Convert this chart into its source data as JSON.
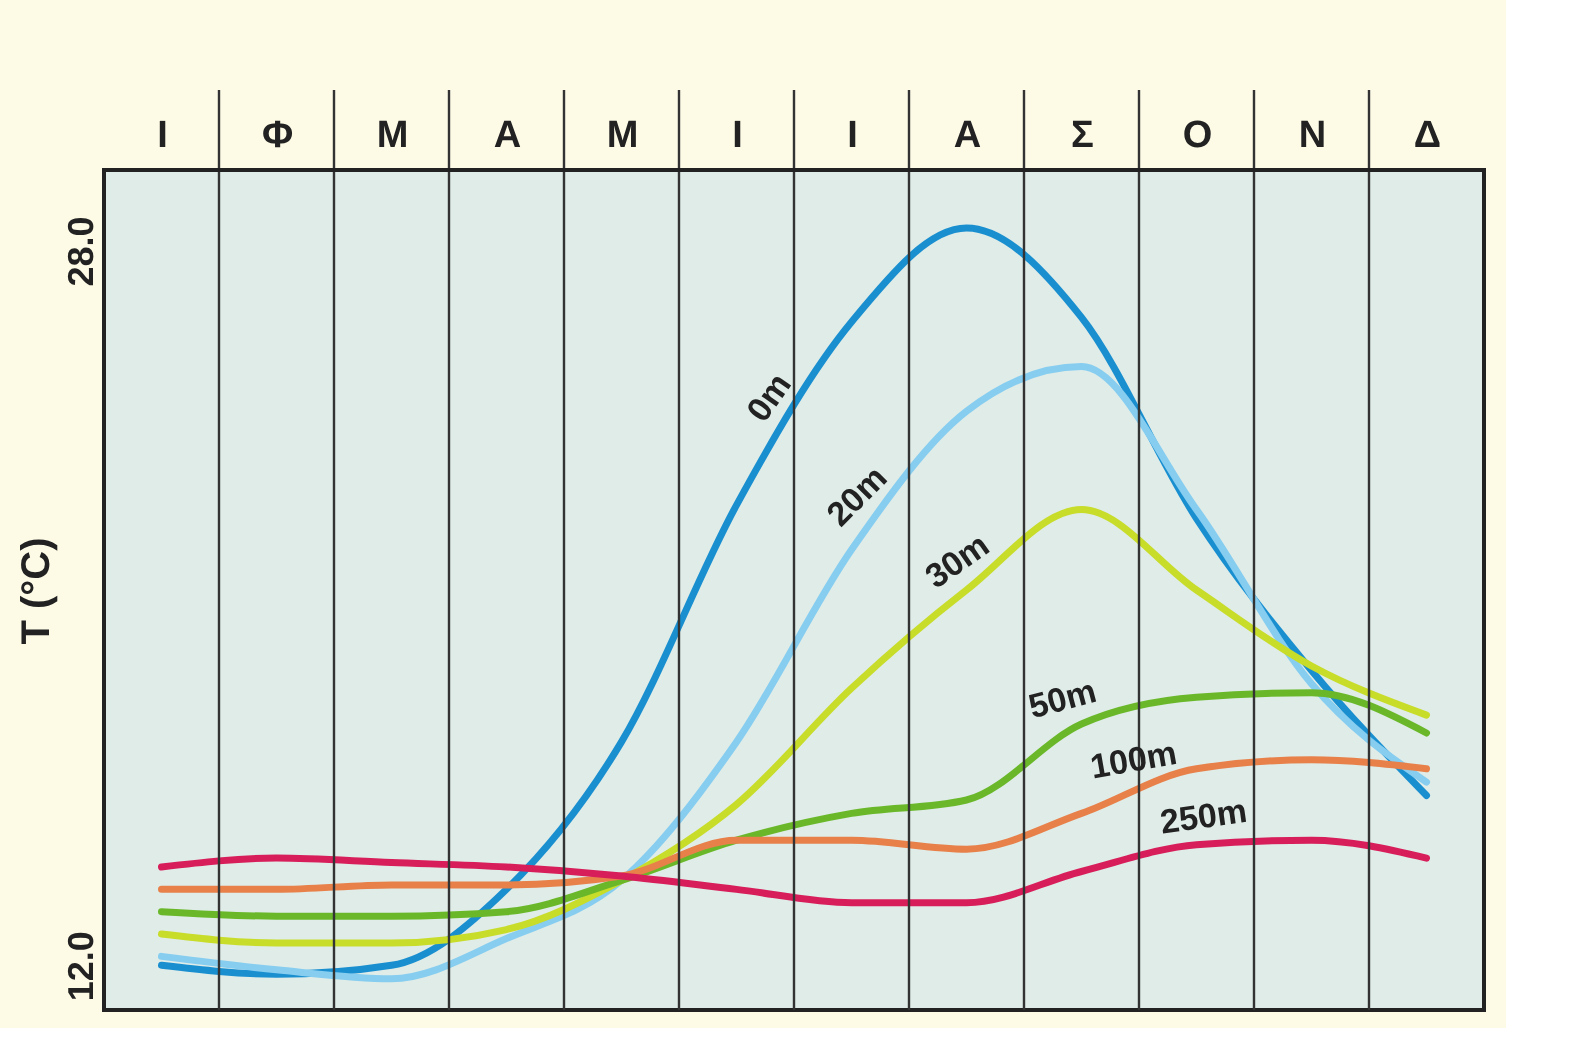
{
  "chart_data": {
    "type": "line",
    "ylabel": "T (°C)",
    "categories": [
      "Ι",
      "Φ",
      "Μ",
      "Α",
      "Μ",
      "Ι",
      "Ι",
      "Α",
      "Σ",
      "Ο",
      "Ν",
      "Δ"
    ],
    "ylim": [
      11.0,
      29.8
    ],
    "yticks": [
      {
        "value": 12,
        "label": "12.0"
      },
      {
        "value": 28,
        "label": "28.0"
      }
    ],
    "grid": "x",
    "legend": false,
    "marker": "none",
    "line_style": "solid",
    "series": [
      {
        "name": "0m",
        "color": "#1a8fd0",
        "values": [
          12.0,
          11.8,
          12.0,
          13.7,
          17.0,
          22.3,
          26.4,
          28.5,
          26.5,
          22.0,
          18.6,
          15.8
        ]
      },
      {
        "name": "20m",
        "color": "#86cdf0",
        "values": [
          12.2,
          11.9,
          11.7,
          12.6,
          13.9,
          17.0,
          21.3,
          24.4,
          25.4,
          22.2,
          18.3,
          16.1
        ]
      },
      {
        "name": "30m",
        "color": "#c8dc2a",
        "values": [
          12.7,
          12.5,
          12.5,
          12.8,
          13.9,
          15.6,
          18.2,
          20.4,
          22.2,
          20.4,
          18.7,
          17.6
        ]
      },
      {
        "name": "50m",
        "color": "#6ab82a",
        "values": [
          13.2,
          13.1,
          13.1,
          13.2,
          13.9,
          14.8,
          15.4,
          15.7,
          17.4,
          18.0,
          18.1,
          17.2
        ]
      },
      {
        "name": "100m",
        "color": "#e8804a",
        "values": [
          13.7,
          13.7,
          13.8,
          13.8,
          14.0,
          14.8,
          14.8,
          14.6,
          15.4,
          16.4,
          16.6,
          16.4
        ]
      },
      {
        "name": "250m",
        "color": "#d81e5a",
        "values": [
          14.2,
          14.4,
          14.3,
          14.2,
          14.0,
          13.7,
          13.4,
          13.4,
          14.1,
          14.7,
          14.8,
          14.4
        ]
      }
    ]
  }
}
